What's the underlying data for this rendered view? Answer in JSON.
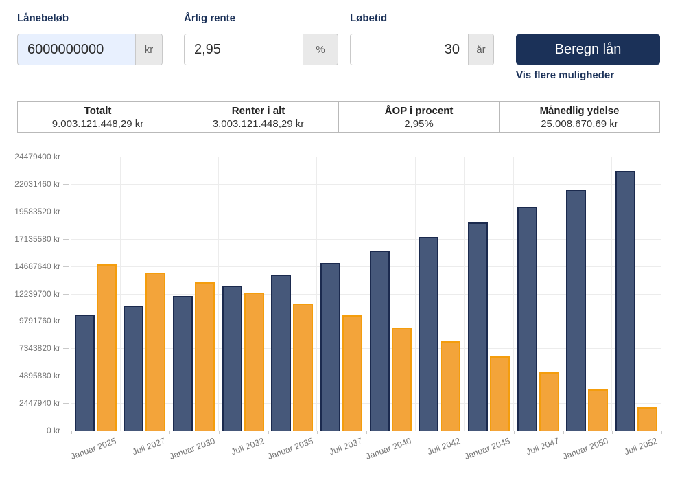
{
  "form": {
    "fields": [
      {
        "label": "Lånebeløb",
        "value": "6000000000",
        "suffix": "kr"
      },
      {
        "label": "Årlig rente",
        "value": "2,95",
        "suffix": "%"
      },
      {
        "label": "Løbetid",
        "value": "30",
        "suffix": "år"
      }
    ],
    "submit_label": "Beregn lån",
    "more_link": "Vis flere muligheder"
  },
  "summary": {
    "cells": [
      {
        "title": "Totalt",
        "value": "9.003.121.448,29 kr"
      },
      {
        "title": "Renter i alt",
        "value": "3.003.121.448,29 kr"
      },
      {
        "title": "ÅOP i procent",
        "value": "2,95%"
      },
      {
        "title": "Månedlig ydelse",
        "value": "25.008.670,69 kr"
      }
    ]
  },
  "chart_data": {
    "type": "bar",
    "title": "",
    "xlabel": "",
    "ylabel": "",
    "legend": "none",
    "grid": true,
    "ylim": [
      0,
      24479400
    ],
    "categories": [
      "Januar 2025",
      "Juli 2027",
      "Januar 2030",
      "Juli 2032",
      "Januar 2035",
      "Juli 2037",
      "Januar 2040",
      "Juli 2042",
      "Januar 2045",
      "Juli 2047",
      "Januar 2050",
      "Juli 2052"
    ],
    "series": [
      {
        "name": "blue",
        "color": "#46587a",
        "border_color": "#1b2a4e",
        "values": [
          10258671,
          11042840,
          11886974,
          12795466,
          13773797,
          14826601,
          15939395,
          17179087,
          18493049,
          19906974,
          21428771,
          23065954
        ]
      },
      {
        "name": "orange",
        "color": "#f3a43a",
        "border_color": "#f49d0d",
        "values": [
          14750000,
          13965831,
          13121697,
          12213205,
          11234874,
          10182070,
          9069276,
          7829584,
          6515622,
          5101697,
          3579900,
          1942717
        ]
      }
    ],
    "yticks": [
      {
        "v": 24479400,
        "label": "24479400 kr"
      },
      {
        "v": 22031460,
        "label": "22031460 kr"
      },
      {
        "v": 19583520,
        "label": "19583520 kr"
      },
      {
        "v": 17135580,
        "label": "17135580 kr"
      },
      {
        "v": 14687640,
        "label": "14687640 kr"
      },
      {
        "v": 12239700,
        "label": "12239700 kr"
      },
      {
        "v": 9791760,
        "label": "9791760 kr"
      },
      {
        "v": 7343820,
        "label": "7343820 kr"
      },
      {
        "v": 4895880,
        "label": "4895880 kr"
      },
      {
        "v": 2447940,
        "label": "2447940 kr"
      },
      {
        "v": 0,
        "label": "0 kr"
      }
    ]
  }
}
